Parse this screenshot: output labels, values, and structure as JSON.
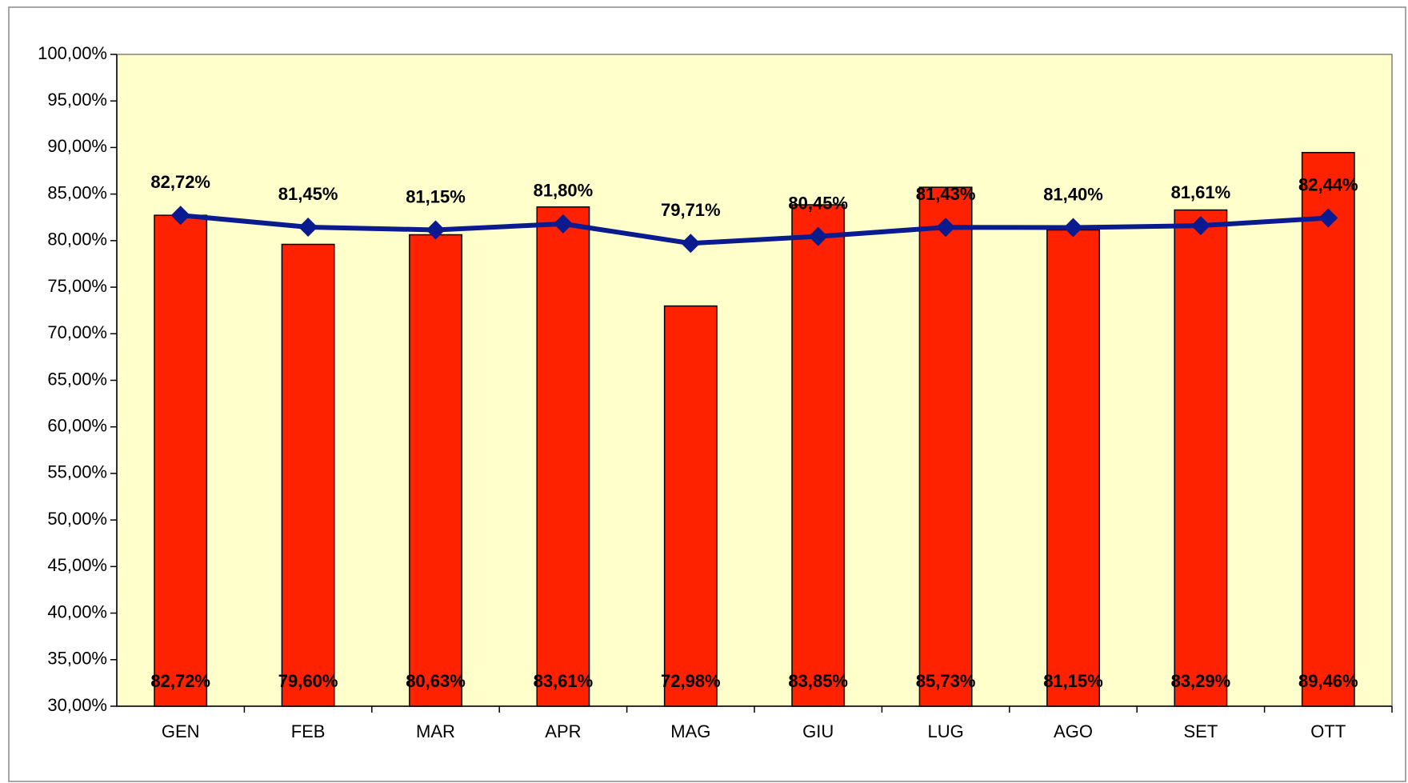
{
  "chart_data": {
    "type": "bar",
    "categories": [
      "GEN",
      "FEB",
      "MAR",
      "APR",
      "MAG",
      "GIU",
      "LUG",
      "AGO",
      "SET",
      "OTT"
    ],
    "series": [
      {
        "type": "bar",
        "color": "#ff2200",
        "values": [
          82.72,
          79.6,
          80.63,
          83.61,
          72.98,
          83.85,
          85.73,
          81.15,
          83.29,
          89.46
        ],
        "value_labels": [
          "82,72%",
          "79,60%",
          "80,63%",
          "83,61%",
          "72,98%",
          "83,85%",
          "85,73%",
          "81,15%",
          "83,29%",
          "89,46%"
        ]
      },
      {
        "type": "line",
        "color": "#0a1a8f",
        "values": [
          82.72,
          81.45,
          81.15,
          81.8,
          79.71,
          80.45,
          81.43,
          81.4,
          81.61,
          82.44
        ],
        "value_labels": [
          "82,72%",
          "81,45%",
          "81,15%",
          "81,80%",
          "79,71%",
          "80,45%",
          "81,43%",
          "81,40%",
          "81,61%",
          "82,44%"
        ]
      }
    ],
    "ylim": [
      30,
      100
    ],
    "yticks": [
      {
        "value": 30,
        "label": "30,00%"
      },
      {
        "value": 35,
        "label": "35,00%"
      },
      {
        "value": 40,
        "label": "40,00%"
      },
      {
        "value": 45,
        "label": "45,00%"
      },
      {
        "value": 50,
        "label": "50,00%"
      },
      {
        "value": 55,
        "label": "55,00%"
      },
      {
        "value": 60,
        "label": "60,00%"
      },
      {
        "value": 65,
        "label": "65,00%"
      },
      {
        "value": 70,
        "label": "70,00%"
      },
      {
        "value": 75,
        "label": "75,00%"
      },
      {
        "value": 80,
        "label": "80,00%"
      },
      {
        "value": 85,
        "label": "85,00%"
      },
      {
        "value": 90,
        "label": "90,00%"
      },
      {
        "value": 95,
        "label": "95,00%"
      },
      {
        "value": 100,
        "label": "100,00%"
      }
    ],
    "plot_background": "#ffffcc"
  }
}
